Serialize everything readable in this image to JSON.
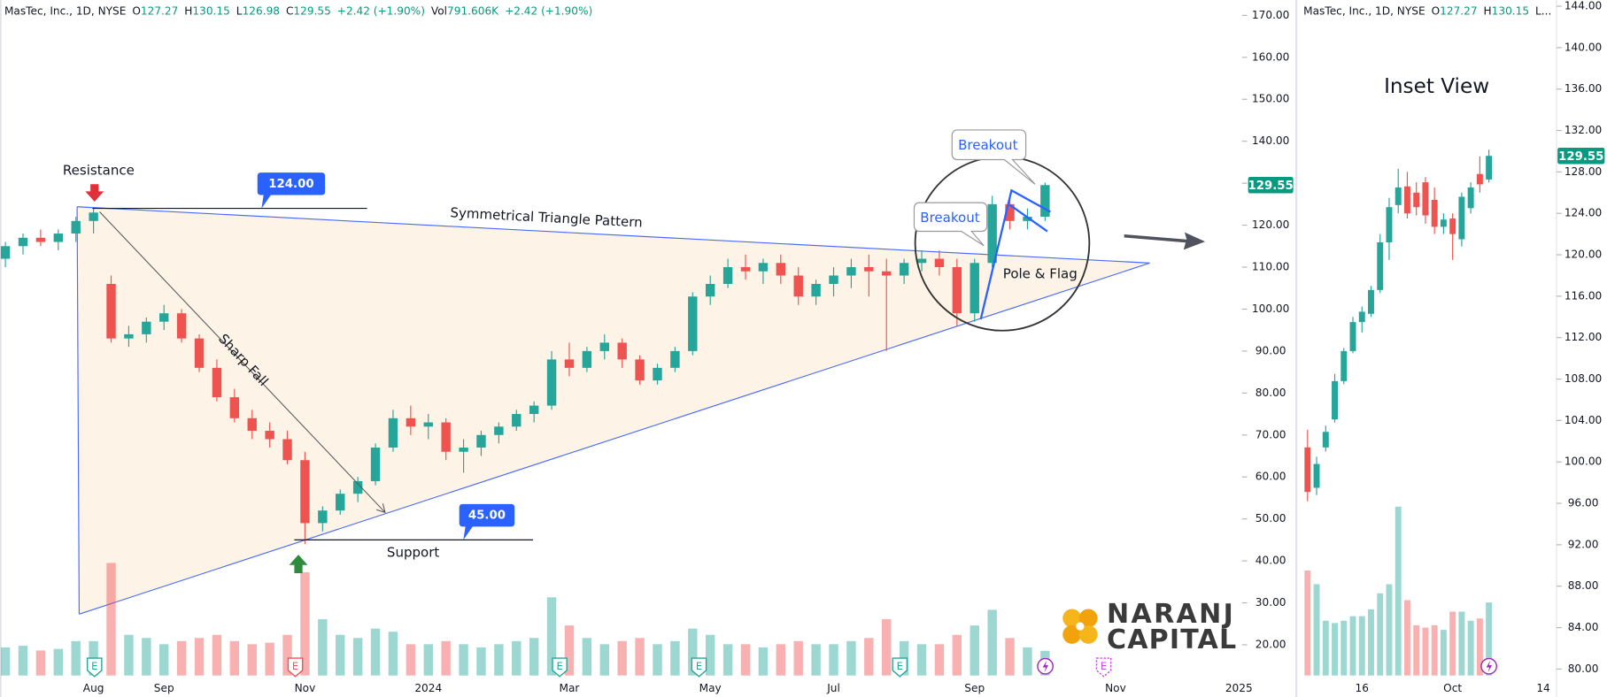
{
  "chart_data": [
    {
      "type": "candlestick",
      "header": {
        "symbol": "MasTec, Inc., 1D, NYSE",
        "fields": [
          {
            "label": "O",
            "value": "127.27"
          },
          {
            "label": "H",
            "value": "130.15"
          },
          {
            "label": "L",
            "value": "126.98"
          },
          {
            "label": "C",
            "value": "129.55"
          },
          {
            "value": "+2.42 (+1.90%)"
          },
          {
            "label": "Vol",
            "value": "791.606K"
          },
          {
            "value": "+2.42 (+1.90%)"
          }
        ]
      },
      "categories": [
        null,
        null,
        null,
        null,
        null,
        "Aug",
        null,
        null,
        null,
        "Sep",
        null,
        null,
        null,
        null,
        null,
        null,
        null,
        "Nov",
        null,
        null,
        null,
        null,
        null,
        null,
        "2024",
        null,
        null,
        null,
        null,
        null,
        null,
        null,
        "Mar",
        null,
        null,
        null,
        null,
        null,
        null,
        null,
        "May",
        null,
        null,
        null,
        null,
        null,
        null,
        "Jul",
        null,
        null,
        null,
        null,
        null,
        null,
        null,
        "Sep",
        null,
        null,
        null,
        null,
        null,
        null,
        null,
        "Nov",
        null,
        null,
        null,
        null,
        null,
        null,
        "2025"
      ],
      "series": {
        "open": [
          112,
          115,
          117,
          116,
          118,
          121,
          106,
          93,
          94,
          97,
          99,
          93,
          86,
          79,
          74,
          71,
          69,
          64,
          49,
          52,
          56,
          59,
          67,
          74,
          72,
          73,
          66,
          67,
          70,
          72,
          75,
          77,
          88,
          86,
          90,
          92,
          88,
          83,
          86,
          90,
          103,
          106,
          110,
          109,
          111,
          108,
          103,
          106,
          108,
          110,
          109,
          108,
          111,
          112,
          110,
          99,
          111,
          125,
          121,
          122,
          null,
          null,
          null,
          null,
          null,
          null,
          null,
          null,
          null,
          null,
          null
        ],
        "high": [
          116,
          118,
          119,
          119,
          122,
          124,
          108,
          96,
          98,
          101,
          100,
          94,
          88,
          81,
          76,
          73,
          71,
          66,
          53,
          57,
          60,
          68,
          76,
          77,
          75,
          74,
          69,
          71,
          73,
          76,
          78,
          90,
          92,
          91,
          94,
          93,
          89,
          87,
          91,
          104,
          108,
          112,
          113,
          112,
          113,
          110,
          107,
          110,
          112,
          113,
          112,
          112,
          114,
          114,
          112,
          112,
          127,
          127,
          124,
          130.15,
          null,
          null,
          null,
          null,
          null,
          null,
          null,
          null,
          null,
          null,
          null
        ],
        "low": [
          110,
          113,
          115,
          114,
          116,
          118,
          92,
          91,
          92,
          95,
          92,
          85,
          78,
          73,
          69,
          67,
          63,
          44,
          47,
          51,
          54,
          58,
          66,
          70,
          69,
          64,
          61,
          65,
          68,
          71,
          73,
          76,
          84,
          85,
          88,
          86,
          82,
          82,
          85,
          89,
          101,
          105,
          107,
          106,
          106,
          101,
          101,
          103,
          105,
          103,
          90,
          106,
          109,
          108,
          96,
          97,
          110,
          119,
          119,
          121,
          null,
          null,
          null,
          null,
          null,
          null,
          null,
          null,
          null,
          null,
          null
        ],
        "close": [
          115,
          117,
          116,
          118,
          121,
          123,
          93,
          94,
          97,
          99,
          93,
          86,
          79,
          74,
          71,
          69,
          64,
          49,
          52,
          56,
          59,
          67,
          74,
          72,
          73,
          66,
          67,
          70,
          72,
          75,
          77,
          88,
          86,
          90,
          92,
          88,
          83,
          86,
          90,
          103,
          106,
          110,
          109,
          111,
          108,
          103,
          106,
          108,
          110,
          109,
          108,
          111,
          112,
          110,
          99,
          111,
          125,
          121,
          122,
          129.55,
          null,
          null,
          null,
          null,
          null,
          null,
          null,
          null,
          null,
          null,
          null
        ],
        "volume": [
          900,
          950,
          800,
          850,
          1100,
          1100,
          3600,
          1300,
          1200,
          1000,
          1100,
          1200,
          1300,
          1100,
          1000,
          1050,
          1300,
          3300,
          1800,
          1300,
          1200,
          1500,
          1400,
          1000,
          1000,
          1100,
          1000,
          900,
          1000,
          1100,
          1200,
          2500,
          1600,
          1200,
          1000,
          1100,
          1200,
          1000,
          1100,
          1500,
          1300,
          1000,
          1000,
          900,
          1000,
          1100,
          1000,
          1000,
          1100,
          1200,
          1800,
          1100,
          1000,
          1000,
          1300,
          1600,
          2100,
          1200,
          900,
          790,
          null,
          null,
          null,
          null,
          null,
          null,
          null,
          null,
          null,
          null,
          null
        ],
        "up_color": "#26a69a",
        "down_color": "#ef5350"
      },
      "ylim": [
        7.56,
        173.66
      ],
      "yticks": [
        {
          "value": 20,
          "label": "20.00"
        },
        {
          "value": 30,
          "label": "30.00"
        },
        {
          "value": 40,
          "label": "40.00"
        },
        {
          "value": 50,
          "label": "50.00"
        },
        {
          "value": 60,
          "label": "60.00"
        },
        {
          "value": 70,
          "label": "70.00"
        },
        {
          "value": 80,
          "label": "80.00"
        },
        {
          "value": 90,
          "label": "90.00"
        },
        {
          "value": 100,
          "label": "100.00"
        },
        {
          "value": 110,
          "label": "110.00"
        },
        {
          "value": 120,
          "label": "120.00"
        },
        {
          "value": 130,
          "label": "130.00"
        },
        {
          "value": 140,
          "label": "140.00"
        },
        {
          "value": 150,
          "label": "150.00"
        },
        {
          "value": 160,
          "label": "160.00"
        },
        {
          "value": 170,
          "label": "170.00"
        }
      ],
      "last_price": {
        "value": 129.55,
        "label": "129.55"
      },
      "annotations": {
        "resistance": "Resistance",
        "resistance_level": {
          "value": 124,
          "label": "124.00"
        },
        "pattern": "Symmetrical Triangle Pattern",
        "sharp_fall": "Sharp Fall",
        "support": "Support",
        "support_level": {
          "value": 45,
          "label": "45.00"
        },
        "breakout": [
          "Breakout",
          "Breakout"
        ],
        "pole_flag": "Pole & Flag"
      },
      "events": [
        "E",
        "E",
        "E",
        "E",
        "E",
        "E"
      ]
    },
    {
      "type": "candlestick",
      "title": "Inset View",
      "header": {
        "symbol": "MasTec, Inc., 1D, NYSE",
        "fields": [
          {
            "label": "O",
            "value": "127.27"
          },
          {
            "label": "H",
            "value": "130.15"
          },
          {
            "label": "L..."
          }
        ]
      },
      "categories": [
        null,
        null,
        null,
        null,
        null,
        null,
        "16",
        null,
        null,
        null,
        null,
        null,
        null,
        null,
        null,
        null,
        "Oct",
        null,
        null,
        null,
        null,
        null,
        null,
        null,
        null,
        null,
        "14"
      ],
      "series": {
        "open": [
          101.4,
          97.5,
          101.4,
          104.1,
          107.8,
          110.7,
          113.5,
          114.3,
          116.6,
          121.2,
          124.8,
          126.6,
          126,
          127,
          125.3,
          122.7,
          123.5,
          121.5,
          124.5,
          127.8,
          127.27,
          null,
          null,
          null,
          null,
          null,
          null
        ],
        "high": [
          103.1,
          100.5,
          103.5,
          108.5,
          111,
          114,
          115,
          117,
          122,
          125.5,
          128.3,
          128,
          127,
          127.5,
          126.5,
          124,
          124,
          126,
          127,
          129.5,
          130.15,
          null,
          null,
          null,
          null,
          null,
          null
        ],
        "low": [
          96.2,
          96.8,
          101,
          103.8,
          107.5,
          110.5,
          112.5,
          114,
          116.3,
          119.5,
          124,
          123.5,
          123.8,
          123,
          122,
          122,
          119.5,
          120.8,
          124,
          126,
          126.98,
          null,
          null,
          null,
          null,
          null,
          null
        ],
        "close": [
          97.1,
          99.8,
          102.9,
          107.8,
          110.7,
          113.5,
          114.5,
          116.6,
          121.2,
          124.6,
          126.5,
          124,
          124.6,
          123.8,
          122.7,
          123.4,
          122,
          125.6,
          126.5,
          126.8,
          129.55,
          null,
          null,
          null,
          null,
          null,
          null
        ],
        "volume": [
          2300,
          2000,
          1200,
          1150,
          1200,
          1300,
          1300,
          1450,
          1800,
          2000,
          3700,
          1650,
          1100,
          1050,
          1100,
          1000,
          1400,
          1400,
          1200,
          1250,
          1600,
          null,
          null,
          null,
          null,
          null,
          null
        ],
        "up_color": "#26a69a",
        "down_color": "#ef5350"
      },
      "ylim": [
        77.3,
        144.6
      ],
      "yticks": [
        {
          "value": 80,
          "label": "80.00"
        },
        {
          "value": 84,
          "label": "84.00"
        },
        {
          "value": 88,
          "label": "88.00"
        },
        {
          "value": 92,
          "label": "92.00"
        },
        {
          "value": 96,
          "label": "96.00"
        },
        {
          "value": 100,
          "label": "100.00"
        },
        {
          "value": 104,
          "label": "104.00"
        },
        {
          "value": 108,
          "label": "108.00"
        },
        {
          "value": 112,
          "label": "112.00"
        },
        {
          "value": 116,
          "label": "116.00"
        },
        {
          "value": 120,
          "label": "120.00"
        },
        {
          "value": 124,
          "label": "124.00"
        },
        {
          "value": 128,
          "label": "128.00"
        },
        {
          "value": 132,
          "label": "132.00"
        },
        {
          "value": 136,
          "label": "136.00"
        },
        {
          "value": 140,
          "label": "140.00"
        },
        {
          "value": 144,
          "label": "144.00"
        }
      ],
      "last_price": {
        "value": 129.55,
        "label": "129.55"
      }
    }
  ],
  "logo": {
    "line1": "NARANJ",
    "line2": "CAPITAL"
  }
}
